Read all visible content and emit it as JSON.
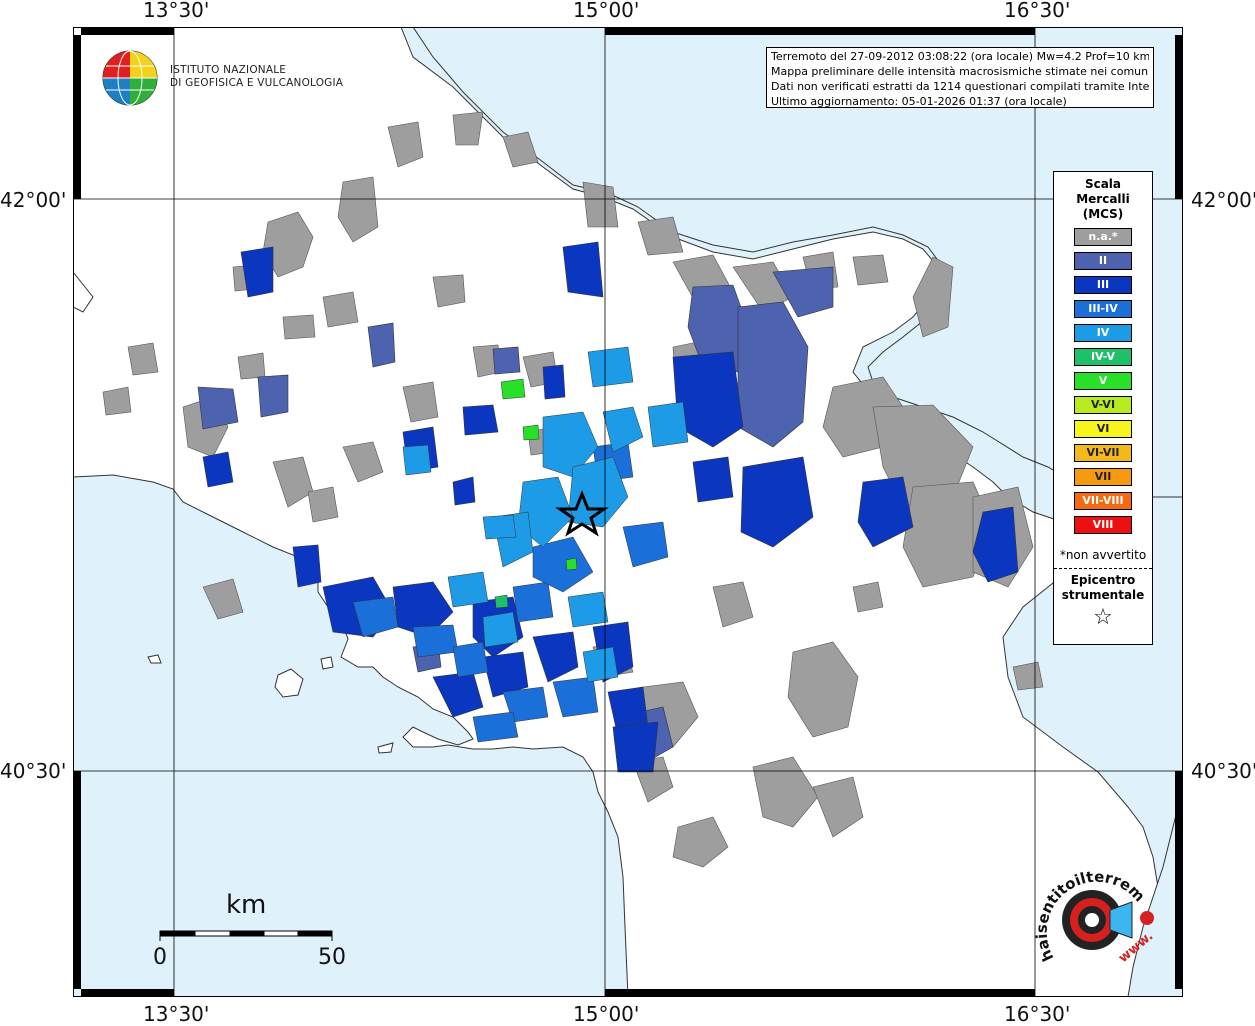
{
  "map": {
    "type": "macroseismic-intensity-map",
    "top_lon_labels": [
      "13°30'",
      "15°00'",
      "16°30'"
    ],
    "bottom_lon_labels": [
      "13°30'",
      "15°00'",
      "16°30'"
    ],
    "left_lat_labels": [
      "42°00'",
      "40°30'"
    ],
    "right_lat_labels": [
      "42°00'",
      "40°30'"
    ],
    "colors": {
      "sea": "#dff1fb",
      "land": "#ffffff",
      "not_available": "#9e9e9e",
      "grid": "#000000"
    }
  },
  "institute": {
    "line1": "ISTITUTO NAZIONALE",
    "line2": "DI GEOFISICA E VULCANOLOGIA"
  },
  "info": {
    "line1": "Terremoto del 27-09-2012 03:08:22 (ora locale) Mw=4.2 Prof=10 km",
    "line2": "Mappa preliminare delle intensità macrosismiche stimate nei comuni",
    "line3": "Dati non verificati estratti da 1214 questionari compilati tramite Internet.",
    "line4": "Ultimo aggiornamento: 05-01-2026 01:37 (ora locale)"
  },
  "legend": {
    "title_line1": "Scala",
    "title_line2": "Mercalli",
    "title_line3": "(MCS)",
    "items": [
      {
        "label": "n.a.*",
        "color": "#9e9e9e"
      },
      {
        "label": "II",
        "color": "#4e63b0"
      },
      {
        "label": "III",
        "color": "#0b36c0"
      },
      {
        "label": "III-IV",
        "color": "#1a6fd8"
      },
      {
        "label": "IV",
        "color": "#1e9be6"
      },
      {
        "label": "IV-V",
        "color": "#1ec06a"
      },
      {
        "label": "V",
        "color": "#28e028"
      },
      {
        "label": "V-VI",
        "color": "#b8ec20"
      },
      {
        "label": "VI",
        "color": "#f6f61e"
      },
      {
        "label": "VI-VII",
        "color": "#f4b81a"
      },
      {
        "label": "VII",
        "color": "#f59a10"
      },
      {
        "label": "VII-VIII",
        "color": "#f56a10"
      },
      {
        "label": "VIII",
        "color": "#ee1010"
      }
    ],
    "note": "*non avvertito",
    "epicenter_line1": "Epicentro",
    "epicenter_line2": "strumentale"
  },
  "scale_bar": {
    "unit": "km",
    "start": "0",
    "end": "50"
  },
  "logo": {
    "text": "haisentitoilterremoto.it",
    "url_text": "www."
  }
}
